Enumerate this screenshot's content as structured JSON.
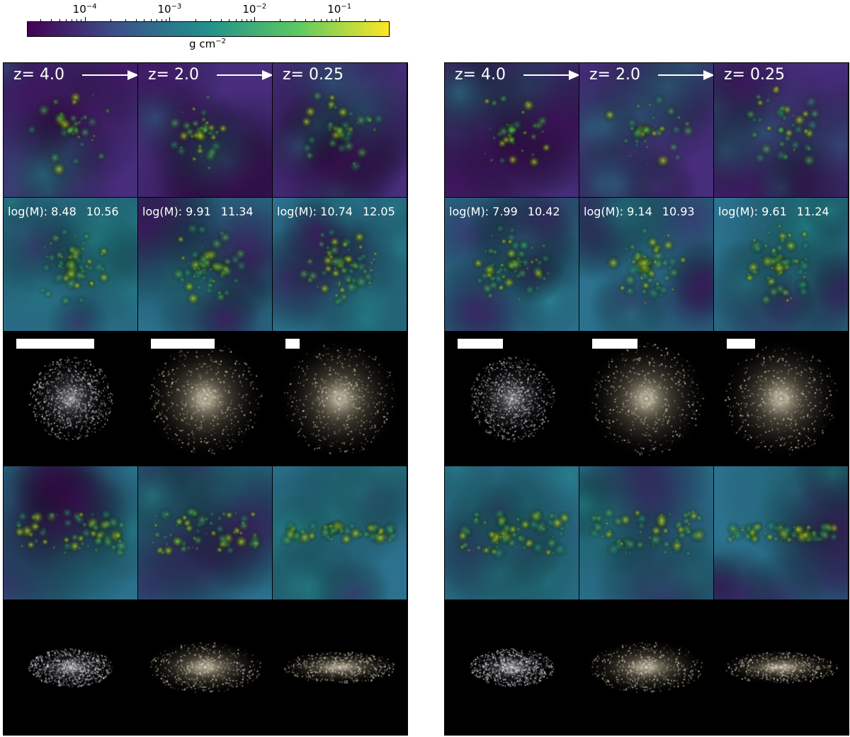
{
  "colorbar": {
    "ticks": [
      {
        "base": "10",
        "exp": "−4",
        "frac": 0.16
      },
      {
        "base": "10",
        "exp": "−3",
        "frac": 0.395
      },
      {
        "base": "10",
        "exp": "−2",
        "frac": 0.63
      },
      {
        "base": "10",
        "exp": "−1",
        "frac": 0.865
      }
    ],
    "units_base": "g cm",
    "units_exp": "−2",
    "colors": [
      "#440154",
      "#3b528b",
      "#21918c",
      "#5ec962",
      "#fde725"
    ]
  },
  "groups": [
    {
      "redshifts": [
        "z= 4.0",
        "z= 2.0",
        "z= 0.25"
      ],
      "mass_labels": [
        {
          "prefix": "log(M): ",
          "m1": "8.48",
          "m2": "10.56"
        },
        {
          "prefix": "log(M): ",
          "m1": "9.91",
          "m2": "11.34"
        },
        {
          "prefix": "log(M): ",
          "m1": "10.74",
          "m2": "12.05"
        }
      ]
    },
    {
      "redshifts": [
        "z= 4.0",
        "z= 2.0",
        "z= 0.25"
      ],
      "mass_labels": [
        {
          "prefix": "log(M): ",
          "m1": "7.99",
          "m2": "10.42"
        },
        {
          "prefix": "log(M): ",
          "m1": "9.14",
          "m2": "10.93"
        },
        {
          "prefix": "log(M): ",
          "m1": "9.61",
          "m2": "11.24"
        }
      ]
    }
  ]
}
